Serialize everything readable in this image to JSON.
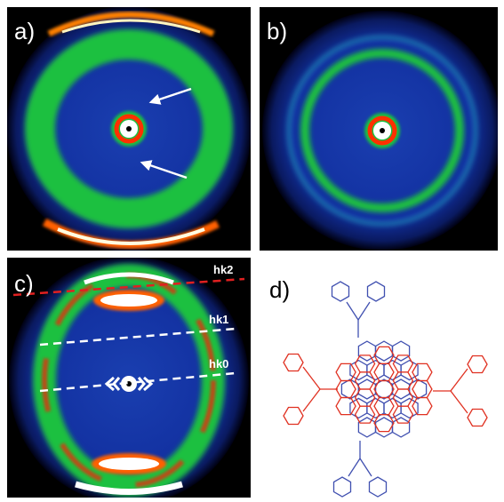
{
  "panels": [
    {
      "label": "a)"
    },
    {
      "label": "b)"
    },
    {
      "label": "c)",
      "annotations": [
        "hk2",
        "hk1",
        "hk0"
      ]
    },
    {
      "label": "d)"
    }
  ]
}
